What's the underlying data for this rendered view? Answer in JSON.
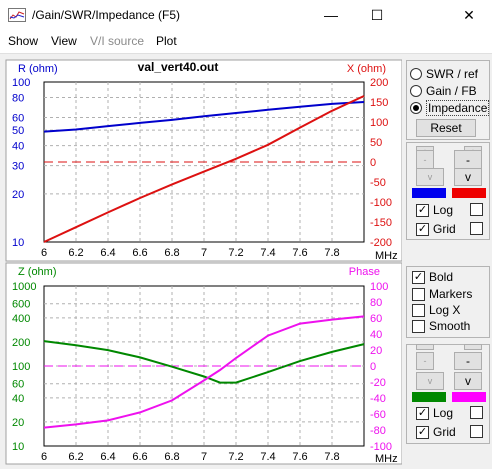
{
  "window": {
    "title": "/Gain/SWR/Impedance (F5)",
    "minimize_glyph": "—",
    "maximize_glyph": "☐",
    "close_glyph": "✕"
  },
  "menu": [
    "Show",
    "View",
    "V/I source",
    "Plot"
  ],
  "top_chart": {
    "title": "val_vert40.out",
    "left_axis_label": "R (ohm)",
    "right_axis_label": "X (ohm)"
  },
  "bottom_chart": {
    "left_axis_label": "Z (ohm)",
    "right_axis_label": "Phase"
  },
  "x_unit": "MHz",
  "controls": {
    "radio_swr": "SWR / ref",
    "radio_gain": "Gain / FB",
    "radio_impedance": "Impedance",
    "reset_label": "Reset",
    "up_glyph": "^",
    "down_glyph": "v",
    "minus_glyph": "-",
    "log_label": "Log",
    "grid_label": "Grid",
    "bold_label": "Bold",
    "markers_label": "Markers",
    "logx_label": "Log X",
    "smooth_label": "Smooth",
    "check_glyph": "✓"
  },
  "colors": {
    "r": "#0000cc",
    "x": "#dd1111",
    "z": "#008800",
    "phase": "#ee11ee",
    "swatch_top_left": "#0000ee",
    "swatch_top_right": "#ee0000",
    "swatch_bottom_left": "#008800",
    "swatch_bottom_right": "#ff00ff"
  },
  "chart_data": [
    {
      "type": "line",
      "title": "val_vert40.out",
      "x_ticks": [
        "6",
        "6.2",
        "6.4",
        "6.6",
        "6.8",
        "7",
        "7.2",
        "7.4",
        "7.6",
        "7.8",
        "MHz"
      ],
      "xlim": [
        6,
        8
      ],
      "left_axis": {
        "label": "R (ohm)",
        "scale": "log",
        "ylim": [
          10,
          100
        ],
        "ticks": [
          "100",
          "80",
          "60",
          "50",
          "40",
          "30",
          "20",
          "10"
        ]
      },
      "right_axis": {
        "label": "X (ohm)",
        "ylim": [
          -200,
          200
        ],
        "ticks": [
          "200",
          "150",
          "100",
          "50",
          "0",
          "-50",
          "-100",
          "-150",
          "-200"
        ]
      },
      "series": [
        {
          "name": "R",
          "axis": "left",
          "x": [
            6.0,
            6.2,
            6.4,
            6.6,
            6.8,
            7.0,
            7.2,
            7.4,
            7.6,
            7.8,
            8.0
          ],
          "y": [
            49,
            50.5,
            53,
            55.5,
            58,
            61,
            64,
            67,
            70,
            73,
            75
          ]
        },
        {
          "name": "X",
          "axis": "right",
          "x": [
            6.0,
            6.2,
            6.4,
            6.6,
            6.8,
            7.0,
            7.2,
            7.4,
            7.6,
            7.8,
            8.0
          ],
          "y": [
            -200,
            -163,
            -126,
            -90,
            -56,
            -24,
            8,
            43,
            86,
            128,
            165
          ]
        }
      ],
      "reference_line": {
        "axis": "right",
        "value": 0,
        "style": "dashed"
      },
      "grid": true
    },
    {
      "type": "line",
      "x_ticks": [
        "6",
        "6.2",
        "6.4",
        "6.6",
        "6.8",
        "7",
        "7.2",
        "7.4",
        "7.6",
        "7.8",
        "MHz"
      ],
      "xlim": [
        6,
        8
      ],
      "left_axis": {
        "label": "Z (ohm)",
        "scale": "log",
        "ylim": [
          10,
          1000
        ],
        "ticks": [
          "1000",
          "600",
          "400",
          "200",
          "100",
          "60",
          "40",
          "20",
          "10"
        ]
      },
      "right_axis": {
        "label": "Phase",
        "ylim": [
          -100,
          100
        ],
        "ticks": [
          "100",
          "80",
          "60",
          "40",
          "20",
          "0",
          "-20",
          "-40",
          "-60",
          "-80",
          "-100"
        ]
      },
      "series": [
        {
          "name": "Z",
          "axis": "left",
          "x": [
            6.0,
            6.2,
            6.4,
            6.6,
            6.8,
            7.0,
            7.1,
            7.2,
            7.4,
            7.6,
            7.8,
            8.0
          ],
          "y": [
            205,
            182,
            158,
            128,
            98,
            74,
            62,
            62,
            84,
            115,
            150,
            188
          ]
        },
        {
          "name": "Phase",
          "axis": "right",
          "x": [
            6.0,
            6.2,
            6.4,
            6.6,
            6.8,
            7.0,
            7.1,
            7.2,
            7.4,
            7.6,
            7.8,
            8.0
          ],
          "y": [
            -77,
            -73,
            -68,
            -58,
            -43,
            -18,
            -5,
            10,
            38,
            53,
            58,
            62
          ]
        }
      ],
      "reference_line": {
        "axis": "right",
        "value": 0,
        "style": "dashed"
      },
      "grid": true
    }
  ]
}
